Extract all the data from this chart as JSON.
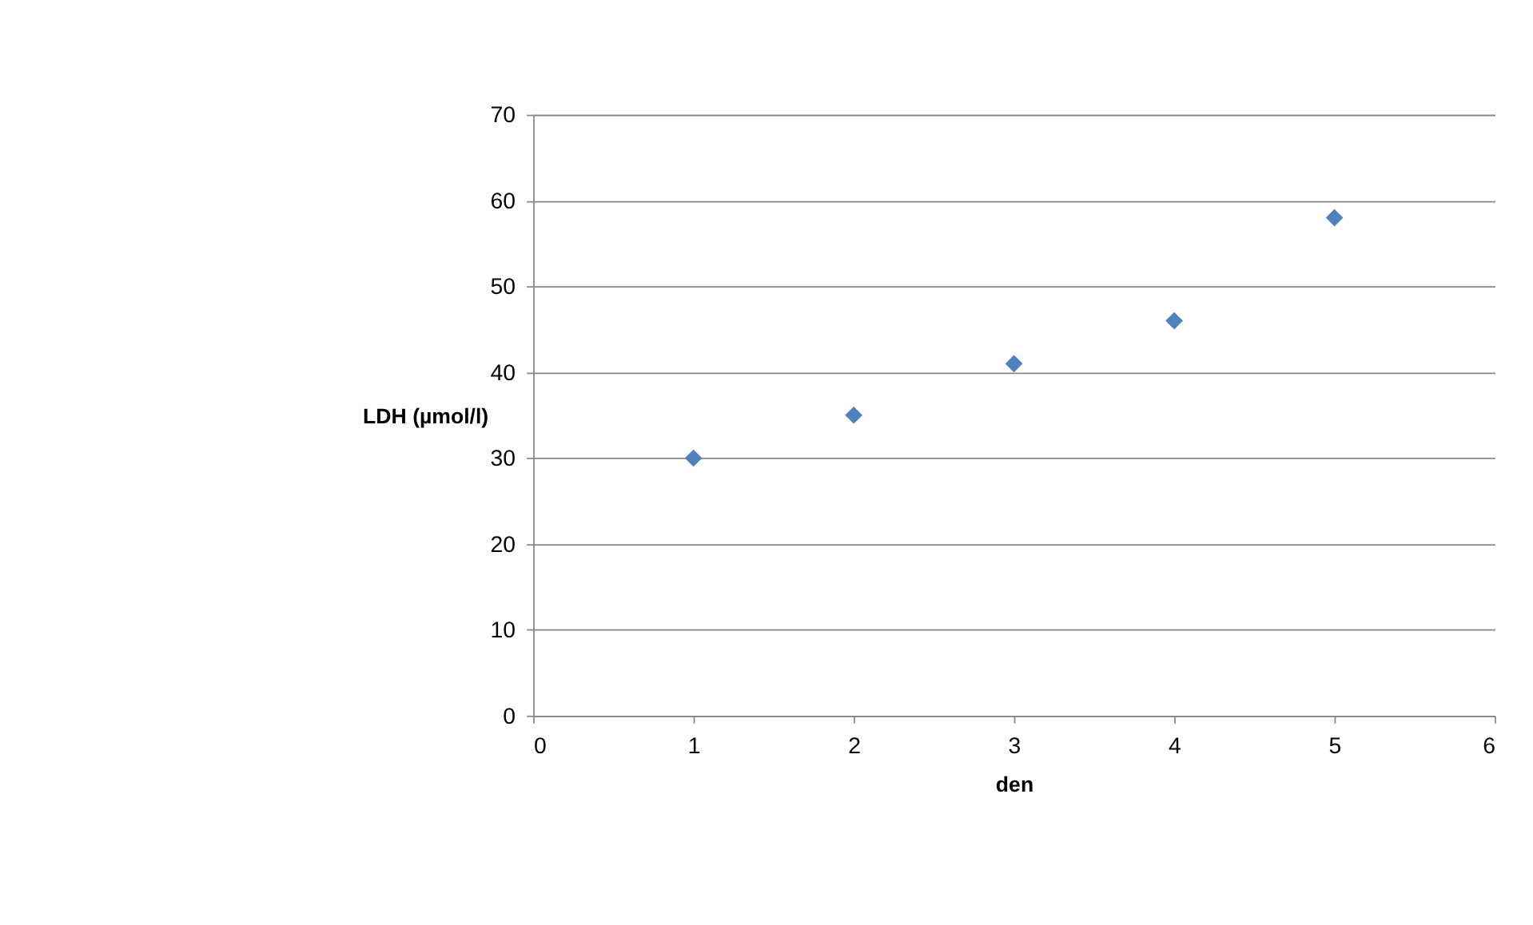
{
  "chart_data": {
    "type": "scatter",
    "xlabel": "den",
    "ylabel": "LDH (µmol/l)",
    "x": [
      1,
      2,
      3,
      4,
      5
    ],
    "series": [
      {
        "color": "#4f81bd",
        "values": [
          30,
          35,
          41,
          46,
          58
        ]
      }
    ],
    "xlim": [
      0,
      6
    ],
    "xticks": [
      0,
      1,
      2,
      3,
      4,
      5,
      6
    ],
    "ylim": [
      0,
      70
    ],
    "yticks": [
      0,
      10,
      20,
      30,
      40,
      50,
      60,
      70
    ],
    "grid": "y",
    "marker": "diamond"
  }
}
